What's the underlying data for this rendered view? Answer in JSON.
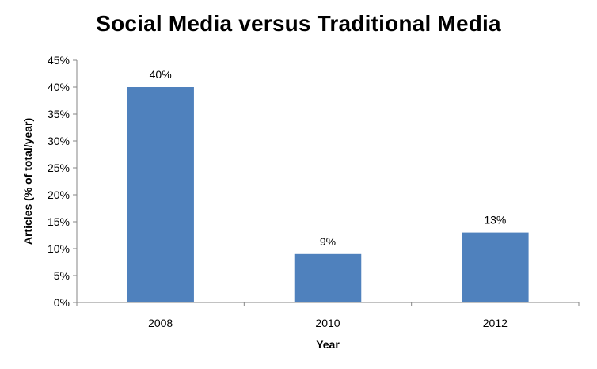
{
  "chart_data": {
    "type": "bar",
    "title": "Social Media versus Traditional Media",
    "categories": [
      "2008",
      "2010",
      "2012"
    ],
    "series": [
      {
        "values": [
          40,
          9,
          13
        ],
        "data_labels": [
          "40%",
          "9%",
          "13%"
        ],
        "color": "#4f81bd"
      }
    ],
    "xlabel": "Year",
    "ylabel": "Articles (% of total/year)",
    "ylim": [
      0,
      45
    ],
    "y_ticks": [
      0,
      5,
      10,
      15,
      20,
      25,
      30,
      35,
      40,
      45
    ],
    "y_tick_labels": [
      "0%",
      "5%",
      "10%",
      "15%",
      "20%",
      "25%",
      "30%",
      "35%",
      "40%",
      "45%"
    ],
    "grid": false,
    "legend": "none",
    "axis_color": "#868686"
  }
}
